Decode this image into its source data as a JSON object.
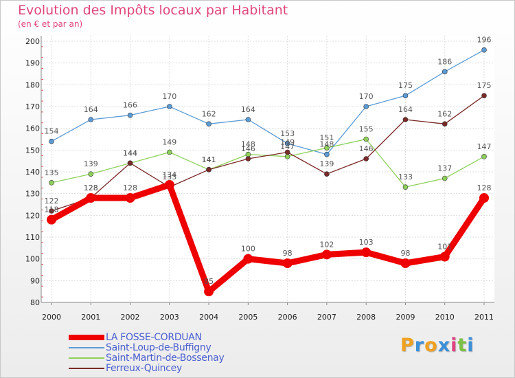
{
  "header": {
    "title": "Evolution des Impôts locaux par Habitant",
    "subtitle": "(en € et par an)"
  },
  "logo": {
    "letters": [
      "P",
      "r",
      "o",
      "x",
      "i",
      "t",
      "i"
    ],
    "colors": [
      "#f0a020",
      "#3a8fd8",
      "#f0a020",
      "#3a8fd8",
      "#e04080",
      "#7ac143",
      "#3a8fd8"
    ]
  },
  "chart_data": {
    "type": "line",
    "title": "Evolution des Impôts locaux par Habitant",
    "subtitle": "(en € et par an)",
    "xlabel": "",
    "ylabel": "",
    "x": [
      "2000",
      "2001",
      "2002",
      "2003",
      "2004",
      "2005",
      "2006",
      "2007",
      "2008",
      "2009",
      "2010",
      "2011"
    ],
    "ylim": [
      80,
      200
    ],
    "yticks": [
      80,
      90,
      100,
      110,
      120,
      130,
      140,
      150,
      160,
      170,
      180,
      190,
      200
    ],
    "grid": true,
    "legend_position": "bottom-left",
    "series": [
      {
        "name": "LA FOSSE-CORDUAN",
        "color": "#ee0000",
        "emphasis": "bold",
        "values": [
          118,
          128,
          128,
          134,
          85,
          100,
          98,
          102,
          103,
          98,
          101,
          128
        ],
        "labels": [
          "118",
          "128",
          "128",
          "134",
          "85",
          "100",
          "98",
          "102",
          "103",
          "98",
          "101",
          "128"
        ]
      },
      {
        "name": "Saint-Loup-de-Buffigny",
        "color": "#5b9bd5",
        "values": [
          154,
          164,
          166,
          170,
          162,
          164,
          153,
          148,
          170,
          175,
          186,
          196
        ],
        "labels": [
          "154",
          "164",
          "166",
          "170",
          "162",
          "164",
          "153",
          "148",
          "170",
          "175",
          "186",
          "196"
        ]
      },
      {
        "name": "Saint-Martin-de-Bossenay",
        "color": "#8ed05a",
        "values": [
          135,
          139,
          144,
          149,
          141,
          148,
          147,
          151,
          155,
          133,
          137,
          147
        ],
        "labels": [
          "135",
          "139",
          "144",
          "149",
          "141",
          "148",
          "147",
          "151",
          "155",
          "133",
          "137",
          "147"
        ]
      },
      {
        "name": "Ferreux-Quincey",
        "color": "#7a2a28",
        "values": [
          122,
          128,
          144,
          133,
          141,
          146,
          149,
          139,
          146,
          164,
          162,
          175
        ],
        "labels": [
          "122",
          "128",
          "144",
          "133",
          "141",
          "146",
          "149",
          "139",
          "146",
          "164",
          "162",
          "175"
        ]
      }
    ]
  }
}
